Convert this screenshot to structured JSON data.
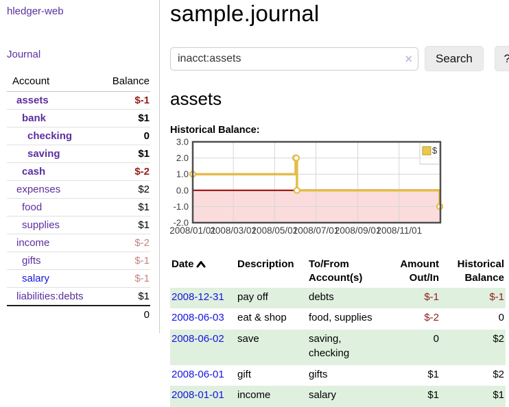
{
  "sidebar": {
    "app_title": "hledger-web",
    "nav": {
      "journal_label": "Journal"
    },
    "accounts_table": {
      "headers": {
        "account": "Account",
        "balance": "Balance"
      },
      "rows": [
        {
          "label": "assets",
          "indent": 1,
          "bold": true,
          "balance": "$-1",
          "balance_style": "neg-strong"
        },
        {
          "label": "bank",
          "indent": 2,
          "bold": true,
          "balance": "$1"
        },
        {
          "label": "checking",
          "indent": 3,
          "bold": true,
          "balance": "0"
        },
        {
          "label": "saving",
          "indent": 3,
          "bold": true,
          "balance": "$1"
        },
        {
          "label": "cash",
          "indent": 2,
          "bold": true,
          "balance": "$-2",
          "balance_style": "neg-strong"
        },
        {
          "label": "expenses",
          "indent": 1,
          "bold": false,
          "balance": "$2"
        },
        {
          "label": "food",
          "indent": 2,
          "bold": false,
          "balance": "$1"
        },
        {
          "label": "supplies",
          "indent": 2,
          "bold": false,
          "balance": "$1"
        },
        {
          "label": "income",
          "indent": 1,
          "bold": false,
          "balance": "$-2",
          "balance_style": "neg-soft"
        },
        {
          "label": "gifts",
          "indent": 2,
          "bold": false,
          "balance": "$-1",
          "balance_style": "neg-soft"
        },
        {
          "label": "salary",
          "indent": 2,
          "bold": false,
          "balance": "$-1",
          "balance_style": "neg-soft",
          "link_style": "blue"
        },
        {
          "label": "liabilities:debts",
          "indent": 1,
          "bold": false,
          "balance": "$1"
        }
      ],
      "total": "0"
    }
  },
  "main": {
    "title": "sample.journal",
    "search": {
      "value": "inacct:assets",
      "clear_icon": "×",
      "button_label": "Search",
      "help_label": "?"
    },
    "account_heading": "assets",
    "chart_label": "Historical Balance:",
    "register_table": {
      "headers": {
        "date": "Date",
        "description": "Description",
        "tofrom_line1": "To/From",
        "tofrom_line2": "Account(s)",
        "amount_line1": "Amount",
        "amount_line2": "Out/In",
        "balance_line1": "Historical",
        "balance_line2": "Balance"
      },
      "rows": [
        {
          "date": "2008-12-31",
          "description": "pay off",
          "accounts": [
            "debts"
          ],
          "amount": "$-1",
          "amount_negative": true,
          "balance": "$-1",
          "balance_negative": true
        },
        {
          "date": "2008-06-03",
          "description": "eat & shop",
          "accounts": [
            "food, supplies"
          ],
          "amount": "$-2",
          "amount_negative": true,
          "balance": "0",
          "balance_negative": false
        },
        {
          "date": "2008-06-02",
          "description": "save",
          "accounts": [
            "saving,",
            "checking"
          ],
          "amount": "0",
          "amount_negative": false,
          "balance": "$2",
          "balance_negative": false
        },
        {
          "date": "2008-06-01",
          "description": "gift",
          "accounts": [
            "gifts"
          ],
          "amount": "$1",
          "amount_negative": false,
          "balance": "$2",
          "balance_negative": false
        },
        {
          "date": "2008-01-01",
          "description": "income",
          "accounts": [
            "salary"
          ],
          "amount": "$1",
          "amount_negative": false,
          "balance": "$1",
          "balance_negative": false
        }
      ]
    }
  },
  "chart_data": {
    "type": "line",
    "title": "Historical Balance",
    "step": true,
    "series": [
      {
        "name": "$",
        "points": [
          [
            "2008-01-01",
            1
          ],
          [
            "2008-06-01",
            2
          ],
          [
            "2008-06-02",
            2
          ],
          [
            "2008-06-03",
            0
          ],
          [
            "2008-12-31",
            -1
          ]
        ]
      }
    ],
    "x_range": [
      "2008-01-01",
      "2009-01-01"
    ],
    "x_ticks": [
      "2008/01/01",
      "2008/03/01",
      "2008/05/01",
      "2008/07/01",
      "2008/09/01",
      "2008/11/01"
    ],
    "y_ticks": [
      "3.0",
      "2.0",
      "1.0",
      "0.0",
      "-1.0",
      "-2.0"
    ],
    "ylim": [
      -2,
      3
    ],
    "grid": true,
    "legend": {
      "label": "$",
      "position": "top-right"
    },
    "colors": {
      "line": "#e4bc48",
      "marker_fill": "#ffffff",
      "negative_fill": "#fbdcdc",
      "zero_line": "#990000",
      "grid": "#d6d6d6",
      "border": "#4d4d4d",
      "swatch": "#e9c84f",
      "swatch_border": "#bf9b2f",
      "tick_text": "#3a3a3a"
    }
  }
}
